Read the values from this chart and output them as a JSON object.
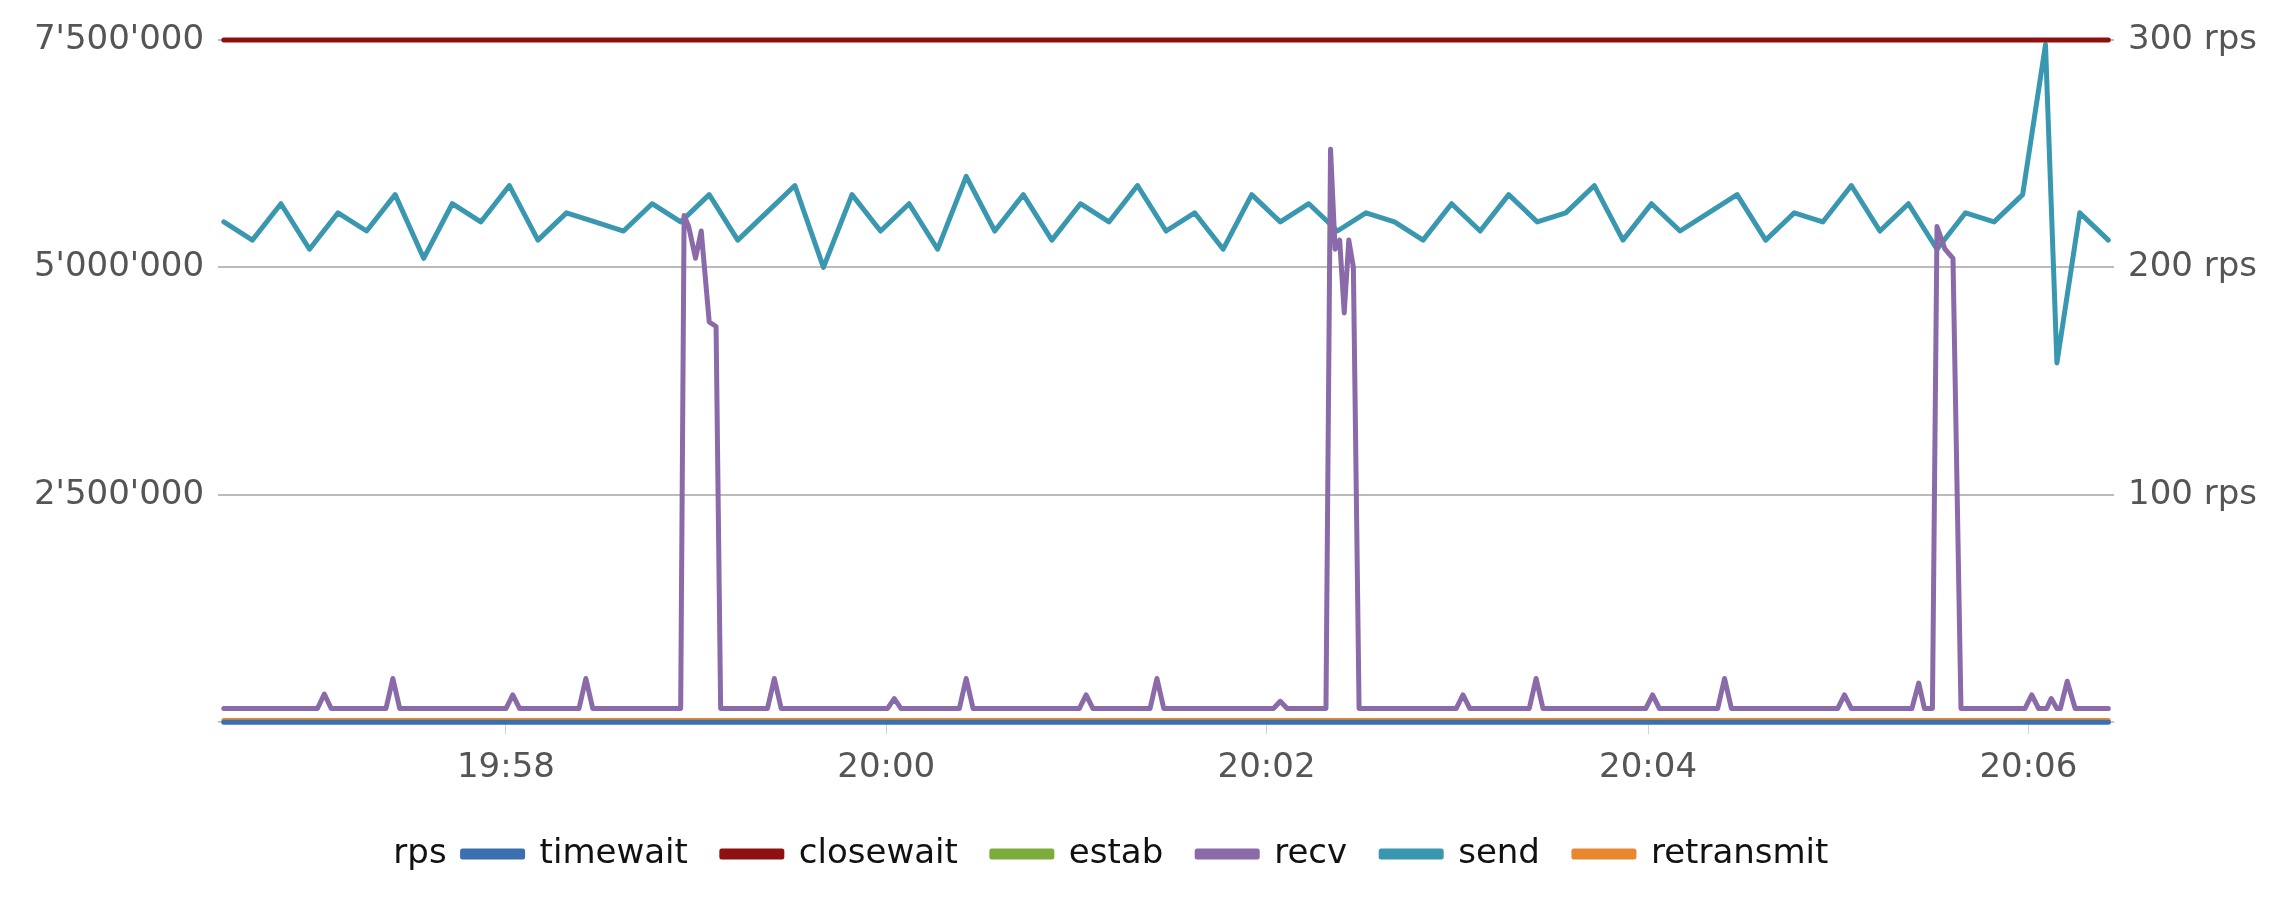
{
  "chart_data": {
    "type": "line",
    "legend_title": "rps",
    "legend": "bottom",
    "grid": "y",
    "marker": "none",
    "line_style": "solid",
    "xlim": [
      19.9415,
      20.1075
    ],
    "xticks": [
      {
        "value": 19.9667,
        "label": "19:58"
      },
      {
        "value": 20,
        "label": "20:00"
      },
      {
        "value": 20.0333,
        "label": "20:02"
      },
      {
        "value": 20.0667,
        "label": "20:04"
      },
      {
        "value": 20.1,
        "label": "20:06"
      }
    ],
    "ylim": [
      0,
      7500000
    ],
    "yticks": [
      {
        "value": 0,
        "label": null
      },
      {
        "value": 2500000,
        "label": "2'500'000"
      },
      {
        "value": 5000000,
        "label": "5'000'000"
      },
      {
        "value": 7500000,
        "label": "7'500'000"
      }
    ],
    "y2lim": [
      0,
      300
    ],
    "y2ticks": [
      {
        "value": 100,
        "label": "100 rps"
      },
      {
        "value": 200,
        "label": "200 rps"
      },
      {
        "value": 300,
        "label": "300 rps"
      }
    ],
    "series": [
      {
        "name": "timewait",
        "color": "#3a6fb0",
        "x": [
          19.942,
          20.107
        ],
        "values": [
          0,
          0
        ]
      },
      {
        "name": "closewait",
        "color": "#8e1010",
        "x": [
          19.942,
          20.107
        ],
        "values": [
          7500000,
          7500000
        ]
      },
      {
        "name": "estab",
        "color": "#7cad3c"
      },
      {
        "name": "recv",
        "color": "#8a6aa8",
        "x": [
          19.942,
          19.9502,
          19.9508,
          19.9514,
          19.9562,
          19.9568,
          19.9574,
          19.9667,
          19.9673,
          19.9679,
          19.9731,
          19.9737,
          19.9743,
          19.982,
          19.9823,
          19.9827,
          19.9833,
          19.9838,
          19.9845,
          19.9851,
          19.9855,
          19.9896,
          19.9902,
          19.9908,
          20.0001,
          20.0007,
          20.0013,
          20.0064,
          20.007,
          20.0076,
          20.0169,
          20.0175,
          20.0181,
          20.0231,
          20.0237,
          20.0243,
          20.0339,
          20.0345,
          20.0351,
          20.0385,
          20.0389,
          20.0393,
          20.0397,
          20.0401,
          20.0405,
          20.0409,
          20.0414,
          20.0499,
          20.0505,
          20.0511,
          20.0563,
          20.0569,
          20.0575,
          20.0665,
          20.0671,
          20.0677,
          20.0728,
          20.0734,
          20.074,
          20.0833,
          20.0839,
          20.0845,
          20.0898,
          20.0904,
          20.0909,
          20.0916,
          20.092,
          20.0927,
          20.0934,
          20.0941,
          20.0997,
          20.1003,
          20.1009,
          20.1016,
          20.102,
          20.1025,
          20.1028,
          20.1034,
          20.1041,
          20.107
        ],
        "values": [
          150000,
          150000,
          310000,
          150000,
          150000,
          480000,
          150000,
          150000,
          300000,
          150000,
          150000,
          480000,
          150000,
          150000,
          5570000,
          5450000,
          5100000,
          5400000,
          4400000,
          4350000,
          150000,
          150000,
          480000,
          150000,
          150000,
          260000,
          150000,
          150000,
          480000,
          150000,
          150000,
          300000,
          150000,
          150000,
          480000,
          150000,
          150000,
          230000,
          150000,
          150000,
          6300000,
          5200000,
          5300000,
          4500000,
          5300000,
          5000000,
          150000,
          150000,
          300000,
          150000,
          150000,
          480000,
          150000,
          150000,
          300000,
          150000,
          150000,
          480000,
          150000,
          150000,
          300000,
          150000,
          150000,
          430000,
          150000,
          150000,
          5450000,
          5200000,
          5100000,
          150000,
          150000,
          300000,
          150000,
          150000,
          260000,
          150000,
          150000,
          450000,
          150000,
          150000
        ]
      },
      {
        "name": "send",
        "color": "#3a97b0",
        "x": [
          19.942,
          19.9445,
          19.947,
          19.9495,
          19.952,
          19.9545,
          19.957,
          19.9595,
          19.962,
          19.9645,
          19.967,
          19.9695,
          19.972,
          19.9745,
          19.977,
          19.9795,
          19.982,
          19.9845,
          19.987,
          19.9895,
          19.992,
          19.9945,
          19.997,
          19.9995,
          20.002,
          20.0045,
          20.007,
          20.0095,
          20.012,
          20.0145,
          20.017,
          20.0195,
          20.022,
          20.0245,
          20.027,
          20.0295,
          20.032,
          20.0345,
          20.037,
          20.0395,
          20.042,
          20.0445,
          20.047,
          20.0495,
          20.052,
          20.0545,
          20.057,
          20.0595,
          20.062,
          20.0645,
          20.067,
          20.0695,
          20.072,
          20.0745,
          20.077,
          20.0795,
          20.082,
          20.0845,
          20.087,
          20.0895,
          20.092,
          20.0945,
          20.097,
          20.0995,
          20.1015,
          20.1025,
          20.1045,
          20.107
        ],
        "values": [
          5500000,
          5300000,
          5700000,
          5200000,
          5600000,
          5400000,
          5800000,
          5100000,
          5700000,
          5500000,
          5900000,
          5300000,
          5600000,
          5500000,
          5400000,
          5700000,
          5500000,
          5800000,
          5300000,
          5600000,
          5900000,
          5000000,
          5800000,
          5400000,
          5700000,
          5200000,
          6000000,
          5400000,
          5800000,
          5300000,
          5700000,
          5500000,
          5900000,
          5400000,
          5600000,
          5200000,
          5800000,
          5500000,
          5700000,
          5400000,
          5600000,
          5500000,
          5300000,
          5700000,
          5400000,
          5800000,
          5500000,
          5600000,
          5900000,
          5300000,
          5700000,
          5400000,
          5600000,
          5800000,
          5300000,
          5600000,
          5500000,
          5900000,
          5400000,
          5700000,
          5200000,
          5600000,
          5500000,
          5800000,
          7450000,
          3950000,
          5600000,
          5300000
        ]
      },
      {
        "name": "retransmit",
        "color": "#e8872e",
        "x": [
          19.942,
          20.107
        ],
        "values": [
          20000,
          20000
        ]
      }
    ]
  }
}
